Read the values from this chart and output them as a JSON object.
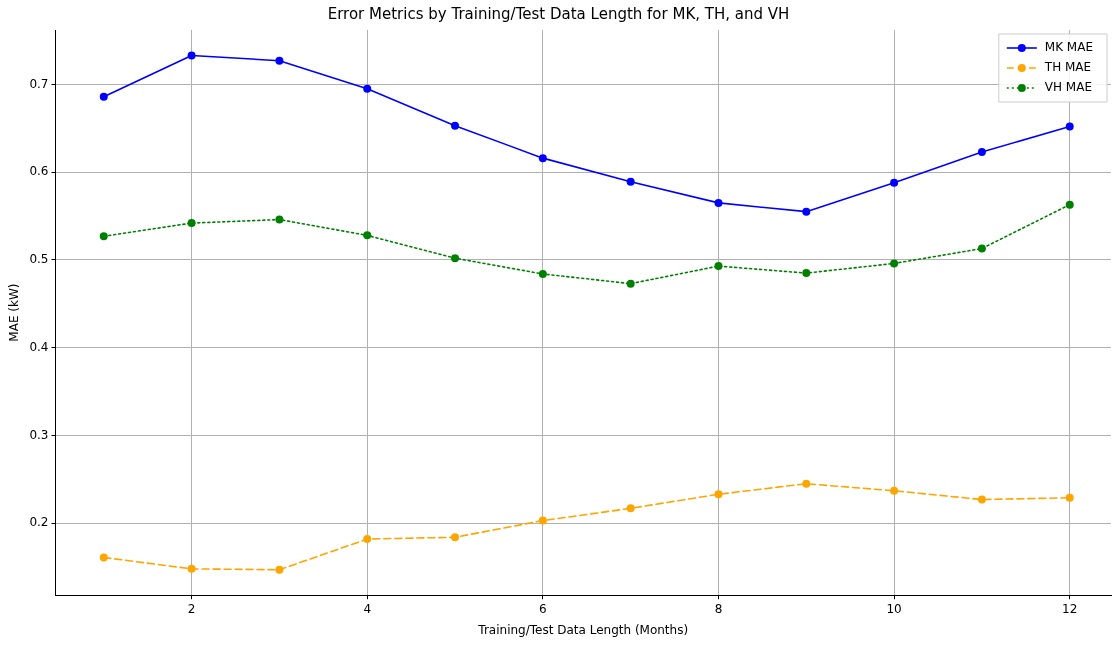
{
  "chart_data": {
    "type": "line",
    "title": "Error Metrics by Training/Test Data Length for MK, TH, and VH",
    "xlabel": "Training/Test Data Length (Months)",
    "ylabel": "MAE (kW)",
    "x": [
      1,
      2,
      3,
      4,
      5,
      6,
      7,
      8,
      9,
      10,
      11,
      12
    ],
    "series": [
      {
        "name": "MK MAE",
        "color": "#0000ff",
        "line_style": "solid",
        "values": [
          0.686,
          0.733,
          0.727,
          0.695,
          0.653,
          0.616,
          0.589,
          0.565,
          0.555,
          0.588,
          0.623,
          0.652
        ]
      },
      {
        "name": "TH MAE",
        "color": "#ffa500",
        "line_style": "dashed",
        "values": [
          0.161,
          0.148,
          0.147,
          0.182,
          0.184,
          0.203,
          0.217,
          0.233,
          0.245,
          0.237,
          0.227,
          0.229
        ]
      },
      {
        "name": "VH MAE",
        "color": "#008000",
        "line_style": "dotted",
        "values": [
          0.527,
          0.542,
          0.546,
          0.528,
          0.502,
          0.484,
          0.473,
          0.493,
          0.485,
          0.496,
          0.513,
          0.563
        ]
      }
    ],
    "xlim": [
      0.45,
      12.47
    ],
    "ylim": [
      0.118,
      0.762
    ],
    "xticks": [
      2,
      4,
      6,
      8,
      10,
      12
    ],
    "yticks": [
      0.2,
      0.3,
      0.4,
      0.5,
      0.6,
      0.7
    ],
    "grid": true,
    "legend": "top right",
    "marker": "circle"
  }
}
